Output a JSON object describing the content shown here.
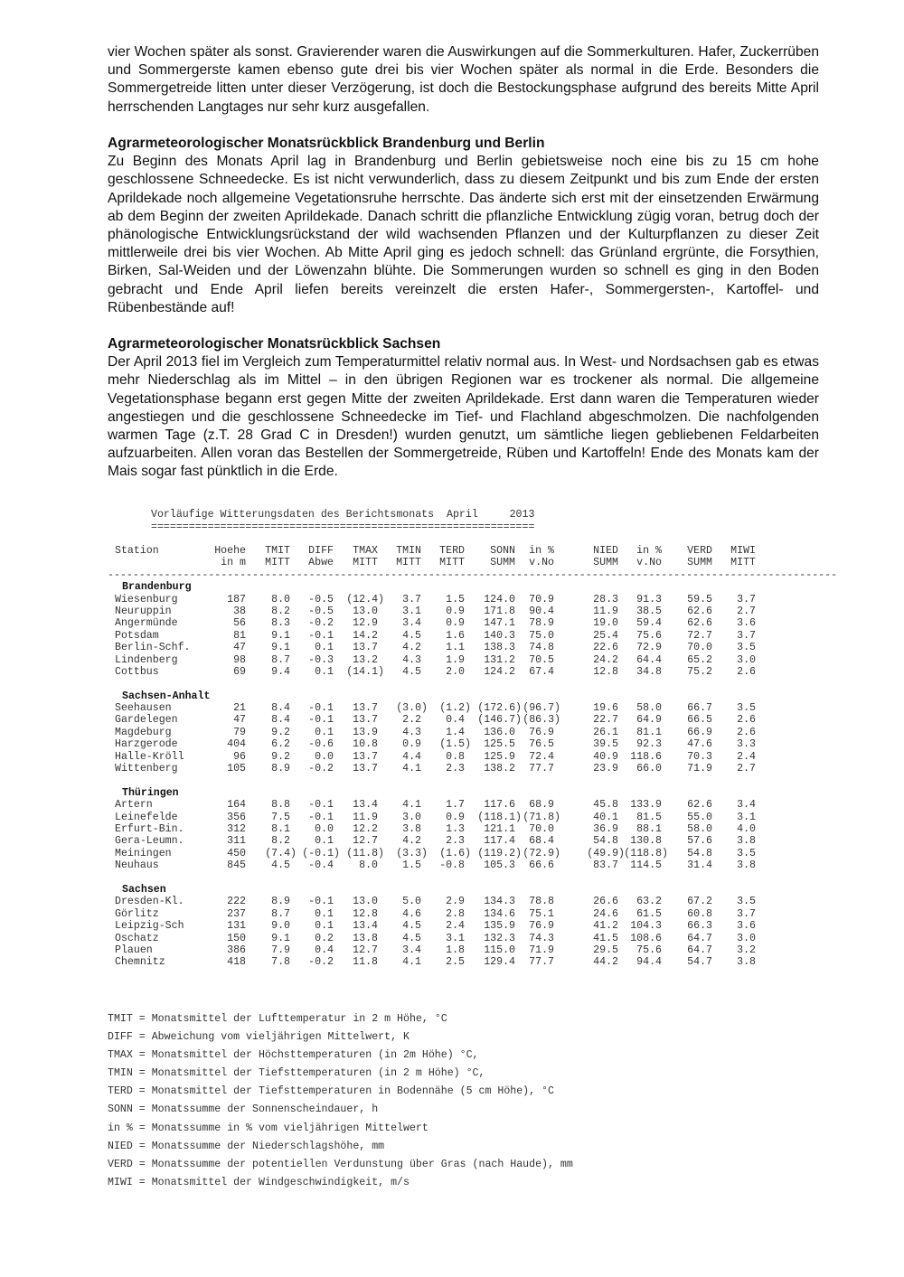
{
  "intro_paragraph": "vier Wochen später als sonst. Gravierender waren die Auswirkungen auf die Sommerkulturen. Hafer, Zuckerrüben und Sommergerste kamen ebenso gute drei bis vier Wochen später als normal in die Erde. Besonders die Sommergetreide litten unter dieser Verzögerung, ist doch die Bestockungsphase aufgrund des bereits Mitte April herrschenden Langtages nur sehr kurz ausgefallen.",
  "sections": [
    {
      "heading": "Agrarmeteorologischer Monatsrückblick Brandenburg und Berlin",
      "text": "Zu Beginn des Monats April lag in Brandenburg und Berlin gebietsweise noch eine bis zu 15 cm hohe geschlossene Schneedecke. Es ist nicht verwunderlich, dass zu diesem Zeitpunkt und bis zum Ende der ersten Aprildekade noch allgemeine Vegetationsruhe herrschte. Das änderte sich erst mit der einsetzenden Erwärmung ab dem Beginn der zweiten Aprildekade. Danach schritt die pflanzliche Entwicklung zügig voran, betrug doch der phänologische Entwicklungsrückstand der wild wachsenden Pflanzen und der Kulturpflanzen zu dieser Zeit mittlerweile drei bis vier Wochen. Ab Mitte April ging es jedoch schnell: das Grünland ergrünte, die Forsythien, Birken, Sal-Weiden und der Löwenzahn blühte. Die Sommerungen wurden so schnell es ging in den Boden gebracht und Ende April liefen bereits vereinzelt die ersten Hafer-, Sommergersten-, Kartoffel- und Rübenbestände auf!"
    },
    {
      "heading": "Agrarmeteorologischer Monatsrückblick Sachsen",
      "text": "Der April 2013 fiel im Vergleich zum Temperaturmittel relativ normal aus. In West- und Nordsachsen gab es etwas mehr Niederschlag als im Mittel – in den übrigen Regionen war es trockener als normal. Die allgemeine Vegetationsphase begann erst gegen Mitte der zweiten Aprildekade. Erst dann waren die Temperaturen wieder angestiegen und die geschlossene Schneedecke im Tief- und Flachland abgeschmolzen. Die nachfolgenden warmen Tage (z.T. 28 Grad C in Dresden!) wurden genutzt, um sämtliche liegen gebliebenen Feldarbeiten aufzuarbeiten. Allen voran das Bestellen der Sommergetreide, Rüben und Kartoffeln! Ende des Monats kam der Mais sogar fast pünktlich in die Erde."
    }
  ],
  "table": {
    "title": "Vorläufige Witterungsdaten des Berichtsmonats  April     2013",
    "rule": "=============================================================",
    "dashes": "--------------------------------------------------------------------------------------------------------------------",
    "headers": [
      [
        "Station",
        ""
      ],
      [
        "Hoehe",
        "in m"
      ],
      [
        "TMIT",
        "MITT"
      ],
      [
        "DIFF",
        "Abwe"
      ],
      [
        "TMAX",
        "MITT"
      ],
      [
        "TMIN",
        "MITT"
      ],
      [
        "TERD",
        "MITT"
      ],
      [
        "SONN",
        "SUMM"
      ],
      [
        "in %",
        "v.No"
      ],
      [
        "NIED",
        "SUMM"
      ],
      [
        "in %",
        "v.No"
      ],
      [
        "VERD",
        "SUMM"
      ],
      [
        "MIWI",
        "MITT"
      ]
    ],
    "groups": [
      {
        "name": "Brandenburg",
        "rows": [
          [
            "Wiesenburg",
            "187",
            "8.0",
            "-0.5",
            "(12.4)",
            "3.7",
            "1.5",
            "124.0",
            "70.9",
            "28.3",
            "91.3",
            "59.5",
            "3.7"
          ],
          [
            "Neuruppin",
            "38",
            "8.2",
            "-0.5",
            "13.0",
            "3.1",
            "0.9",
            "171.8",
            "90.4",
            "11.9",
            "38.5",
            "62.6",
            "2.7"
          ],
          [
            "Angermünde",
            "56",
            "8.3",
            "-0.2",
            "12.9",
            "3.4",
            "0.9",
            "147.1",
            "78.9",
            "19.0",
            "59.4",
            "62.6",
            "3.6"
          ],
          [
            "Potsdam",
            "81",
            "9.1",
            "-0.1",
            "14.2",
            "4.5",
            "1.6",
            "140.3",
            "75.0",
            "25.4",
            "75.6",
            "72.7",
            "3.7"
          ],
          [
            "Berlin-Schf.",
            "47",
            "9.1",
            "0.1",
            "13.7",
            "4.2",
            "1.1",
            "138.3",
            "74.8",
            "22.6",
            "72.9",
            "70.0",
            "3.5"
          ],
          [
            "Lindenberg",
            "98",
            "8.7",
            "-0.3",
            "13.2",
            "4.3",
            "1.9",
            "131.2",
            "70.5",
            "24.2",
            "64.4",
            "65.2",
            "3.0"
          ],
          [
            "Cottbus",
            "69",
            "9.4",
            "0.1",
            "(14.1)",
            "4.5",
            "2.0",
            "124.2",
            "67.4",
            "12.8",
            "34.8",
            "75.2",
            "2.6"
          ]
        ]
      },
      {
        "name": "Sachsen-Anhalt",
        "rows": [
          [
            "Seehausen",
            "21",
            "8.4",
            "-0.1",
            "13.7",
            "(3.0)",
            "(1.2)",
            "(172.6)",
            "(96.7)",
            "19.6",
            "58.0",
            "66.7",
            "3.5"
          ],
          [
            "Gardelegen",
            "47",
            "8.4",
            "-0.1",
            "13.7",
            "2.2",
            "0.4",
            "(146.7)",
            "(86.3)",
            "22.7",
            "64.9",
            "66.5",
            "2.6"
          ],
          [
            "Magdeburg",
            "79",
            "9.2",
            "0.1",
            "13.9",
            "4.3",
            "1.4",
            "136.0",
            "76.9",
            "26.1",
            "81.1",
            "66.9",
            "2.6"
          ],
          [
            "Harzgerode",
            "404",
            "6.2",
            "-0.6",
            "10.8",
            "0.9",
            "(1.5)",
            "125.5",
            "76.5",
            "39.5",
            "92.3",
            "47.6",
            "3.3"
          ],
          [
            "Halle-Kröll",
            "96",
            "9.2",
            "0.0",
            "13.7",
            "4.4",
            "0.8",
            "125.9",
            "72.4",
            "40.9",
            "118.6",
            "70.3",
            "2.4"
          ],
          [
            "Wittenberg",
            "105",
            "8.9",
            "-0.2",
            "13.7",
            "4.1",
            "2.3",
            "138.2",
            "77.7",
            "23.9",
            "66.0",
            "71.9",
            "2.7"
          ]
        ]
      },
      {
        "name": "Thüringen",
        "rows": [
          [
            "Artern",
            "164",
            "8.8",
            "-0.1",
            "13.4",
            "4.1",
            "1.7",
            "117.6",
            "68.9",
            "45.8",
            "133.9",
            "62.6",
            "3.4"
          ],
          [
            "Leinefelde",
            "356",
            "7.5",
            "-0.1",
            "11.9",
            "3.0",
            "0.9",
            "(118.1)",
            "(71.8)",
            "40.1",
            "81.5",
            "55.0",
            "3.1"
          ],
          [
            "Erfurt-Bin.",
            "312",
            "8.1",
            "0.0",
            "12.2",
            "3.8",
            "1.3",
            "121.1",
            "70.0",
            "36.9",
            "88.1",
            "58.0",
            "4.0"
          ],
          [
            "Gera-Leumn.",
            "311",
            "8.2",
            "0.1",
            "12.7",
            "4.2",
            "2.3",
            "117.4",
            "68.4",
            "54.8",
            "130.8",
            "57.6",
            "3.8"
          ],
          [
            "Meiningen",
            "450",
            "(7.4)",
            "(-0.1)",
            "(11.8)",
            "(3.3)",
            "(1.6)",
            "(119.2)",
            "(72.9)",
            "(49.9)",
            "(118.8)",
            "54.8",
            "3.5"
          ],
          [
            "Neuhaus",
            "845",
            "4.5",
            "-0.4",
            "8.0",
            "1.5",
            "-0.8",
            "105.3",
            "66.6",
            "83.7",
            "114.5",
            "31.4",
            "3.8"
          ]
        ]
      },
      {
        "name": "Sachsen",
        "rows": [
          [
            "Dresden-Kl.",
            "222",
            "8.9",
            "-0.1",
            "13.0",
            "5.0",
            "2.9",
            "134.3",
            "78.8",
            "26.6",
            "63.2",
            "67.2",
            "3.5"
          ],
          [
            "Görlitz",
            "237",
            "8.7",
            "0.1",
            "12.8",
            "4.6",
            "2.8",
            "134.6",
            "75.1",
            "24.6",
            "61.5",
            "60.8",
            "3.7"
          ],
          [
            "Leipzig-Sch",
            "131",
            "9.0",
            "0.1",
            "13.4",
            "4.5",
            "2.4",
            "135.9",
            "76.9",
            "41.2",
            "104.3",
            "66.3",
            "3.6"
          ],
          [
            "Oschatz",
            "150",
            "9.1",
            "0.2",
            "13.8",
            "4.5",
            "3.1",
            "132.3",
            "74.3",
            "41.5",
            "108.6",
            "64.7",
            "3.0"
          ],
          [
            "Plauen",
            "386",
            "7.9",
            "0.4",
            "12.7",
            "3.4",
            "1.8",
            "115.0",
            "71.9",
            "29.5",
            "75.6",
            "64.7",
            "3.2"
          ],
          [
            "Chemnitz",
            "418",
            "7.8",
            "-0.2",
            "11.8",
            "4.1",
            "2.5",
            "129.4",
            "77.7",
            "44.2",
            "94.4",
            "54.7",
            "3.8"
          ]
        ]
      }
    ]
  },
  "legend": [
    "TMIT = Monatsmittel der Lufttemperatur in 2 m Höhe, °C",
    "DIFF = Abweichung vom vieljährigen Mittelwert, K",
    "TMAX = Monatsmittel der Höchsttemperaturen (in 2m Höhe) °C,",
    "TMIN = Monatsmittel der Tiefsttemperaturen (in 2 m Höhe) °C,",
    "TERD = Monatsmittel der Tiefsttemperaturen in Bodennähe (5 cm Höhe), °C",
    "SONN = Monatssumme der Sonnenscheindauer, h",
    "in % = Monatssumme in % vom vieljährigen Mittelwert",
    "NIED = Monatssumme der Niederschlagshöhe, mm",
    "VERD = Monatssumme der potentiellen Verdunstung über Gras (nach Haude), mm",
    "MIWI = Monatsmittel der Windgeschwindigkeit, m/s"
  ]
}
